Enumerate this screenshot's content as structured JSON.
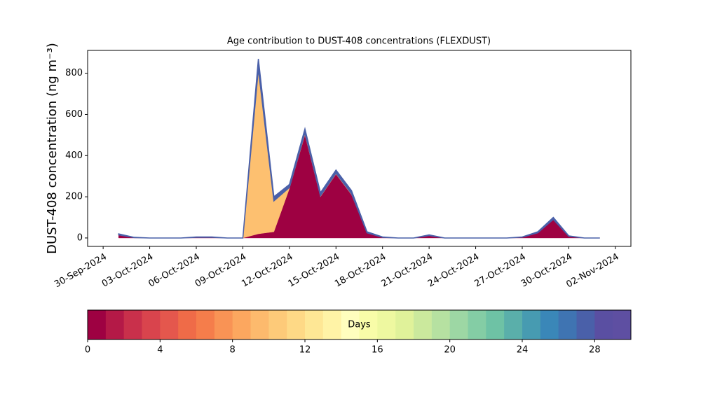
{
  "chart_data": {
    "type": "stacked-area",
    "title": "Age contribution to DUST-408 concentrations (FLEXDUST)",
    "ylabel": "DUST-408 concentration (ng m⁻³)",
    "x": [
      "2024-10-01",
      "2024-10-02",
      "2024-10-03",
      "2024-10-04",
      "2024-10-05",
      "2024-10-06",
      "2024-10-07",
      "2024-10-08",
      "2024-10-09",
      "2024-10-10",
      "2024-10-11",
      "2024-10-12",
      "2024-10-13",
      "2024-10-14",
      "2024-10-15",
      "2024-10-16",
      "2024-10-17",
      "2024-10-18",
      "2024-10-19",
      "2024-10-20",
      "2024-10-21",
      "2024-10-22",
      "2024-10-23",
      "2024-10-24",
      "2024-10-25",
      "2024-10-26",
      "2024-10-27",
      "2024-10-28",
      "2024-10-29",
      "2024-10-30",
      "2024-10-31",
      "2024-11-01"
    ],
    "series": [
      {
        "color": "#9e0142",
        "values": [
          15,
          2,
          0,
          0,
          0,
          3,
          3,
          0,
          0,
          20,
          30,
          240,
          500,
          200,
          310,
          210,
          25,
          3,
          0,
          0,
          12,
          0,
          0,
          0,
          0,
          0,
          4,
          25,
          90,
          8,
          0,
          0
        ]
      },
      {
        "color": "#fdc070",
        "values": [
          0,
          0,
          0,
          0,
          0,
          0,
          0,
          0,
          0,
          800,
          150,
          5,
          10,
          5,
          5,
          5,
          0,
          0,
          0,
          0,
          0,
          0,
          0,
          0,
          0,
          0,
          0,
          0,
          0,
          0,
          0,
          0
        ]
      },
      {
        "color": "#4a60a9",
        "values": [
          5,
          1,
          0,
          0,
          0,
          2,
          2,
          0,
          0,
          50,
          20,
          15,
          20,
          15,
          15,
          15,
          5,
          2,
          0,
          0,
          3,
          0,
          0,
          0,
          0,
          0,
          1,
          5,
          10,
          2,
          0,
          0
        ]
      }
    ],
    "xlim": [
      "2024-09-29",
      "2024-11-03"
    ],
    "xticks": [
      {
        "value": "2024-09-30",
        "label": "30-Sep-2024"
      },
      {
        "value": "2024-10-03",
        "label": "03-Oct-2024"
      },
      {
        "value": "2024-10-06",
        "label": "06-Oct-2024"
      },
      {
        "value": "2024-10-09",
        "label": "09-Oct-2024"
      },
      {
        "value": "2024-10-12",
        "label": "12-Oct-2024"
      },
      {
        "value": "2024-10-15",
        "label": "15-Oct-2024"
      },
      {
        "value": "2024-10-18",
        "label": "18-Oct-2024"
      },
      {
        "value": "2024-10-21",
        "label": "21-Oct-2024"
      },
      {
        "value": "2024-10-24",
        "label": "24-Oct-2024"
      },
      {
        "value": "2024-10-27",
        "label": "27-Oct-2024"
      },
      {
        "value": "2024-10-30",
        "label": "30-Oct-2024"
      },
      {
        "value": "2024-11-02",
        "label": "02-Nov-2024"
      }
    ],
    "ylim": [
      -41,
      911
    ],
    "yticks": [
      0,
      200,
      400,
      600,
      800
    ],
    "colorbar": {
      "label": "Days",
      "lim": [
        0,
        30
      ],
      "ticks": [
        0,
        4,
        8,
        12,
        16,
        20,
        24,
        28
      ],
      "colors": [
        "#9e0142",
        "#b41947",
        "#c9304b",
        "#d9444d",
        "#e4574d",
        "#ef6b48",
        "#f57d4b",
        "#f99355",
        "#fca75f",
        "#fdba6d",
        "#fdca79",
        "#fed986",
        "#fee795",
        "#fff3a6",
        "#fffebe",
        "#f8fca8",
        "#eef8a0",
        "#e0f29a",
        "#cbe99d",
        "#b6e1a1",
        "#9dd7a4",
        "#84cda5",
        "#6ec2a5",
        "#5aafaa",
        "#479bb1",
        "#3a87b8",
        "#3f74b2",
        "#4a60a9",
        "#5a4fa2",
        "#5e4fa2"
      ]
    }
  }
}
